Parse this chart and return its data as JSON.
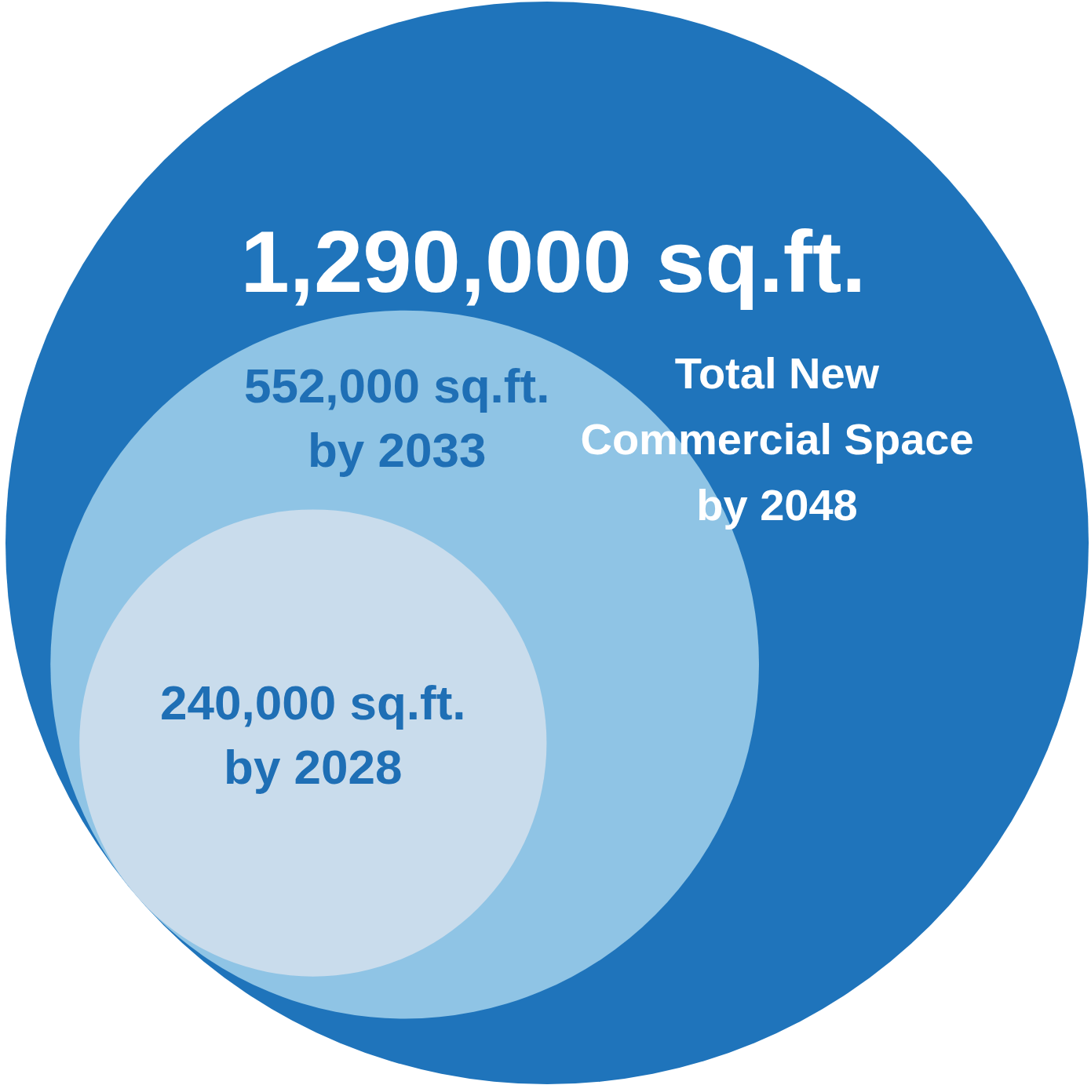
{
  "chart_data": {
    "type": "other",
    "categories": [
      "Total New Commercial Space by 2048",
      "by 2033",
      "by 2028"
    ],
    "values": [
      1290000,
      552000,
      240000
    ],
    "value_labels": [
      "1,290,000 sq.ft.",
      "552,000 sq.ft.",
      "240,000 sq.ft."
    ],
    "colors": [
      "#1f74bb",
      "#8fc4e5",
      "#c9dcec"
    ]
  }
}
